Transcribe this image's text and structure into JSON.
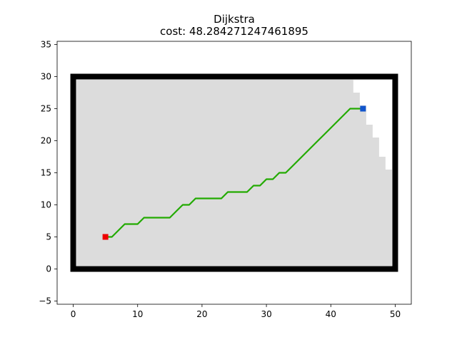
{
  "chart_data": {
    "type": "scatter",
    "title": "Dijkstra",
    "subtitle": "cost: 48.284271247461895",
    "xlabel": "",
    "ylabel": "",
    "xlim": [
      -2.5,
      52.5
    ],
    "ylim": [
      -5.5,
      35.5
    ],
    "xticks": [
      0,
      10,
      20,
      30,
      40,
      50
    ],
    "yticks": [
      -5,
      0,
      5,
      10,
      15,
      20,
      25,
      30,
      35
    ],
    "grid": false,
    "obstacle_boundary": {
      "color": "#000000",
      "x_range": [
        0,
        50
      ],
      "y_range": [
        0,
        30
      ]
    },
    "explored_region": {
      "color": "#dcdcdc",
      "outline": [
        [
          0.5,
          0.5
        ],
        [
          49.5,
          0.5
        ],
        [
          49.5,
          15.5
        ],
        [
          48.5,
          15.5
        ],
        [
          48.5,
          17.5
        ],
        [
          47.5,
          17.5
        ],
        [
          47.5,
          20.5
        ],
        [
          46.5,
          20.5
        ],
        [
          46.5,
          22.5
        ],
        [
          45.5,
          22.5
        ],
        [
          45.5,
          25.5
        ],
        [
          44.5,
          25.5
        ],
        [
          44.5,
          27.5
        ],
        [
          43.5,
          27.5
        ],
        [
          43.5,
          29.5
        ],
        [
          0.5,
          29.5
        ]
      ]
    },
    "path": {
      "color": "#22aa00",
      "points": [
        [
          5,
          5
        ],
        [
          6,
          5
        ],
        [
          7,
          6
        ],
        [
          8,
          7
        ],
        [
          9,
          7
        ],
        [
          10,
          7
        ],
        [
          11,
          8
        ],
        [
          12,
          8
        ],
        [
          13,
          8
        ],
        [
          14,
          8
        ],
        [
          15,
          8
        ],
        [
          16,
          9
        ],
        [
          17,
          10
        ],
        [
          18,
          10
        ],
        [
          19,
          11
        ],
        [
          20,
          11
        ],
        [
          21,
          11
        ],
        [
          22,
          11
        ],
        [
          23,
          11
        ],
        [
          24,
          12
        ],
        [
          25,
          12
        ],
        [
          26,
          12
        ],
        [
          27,
          12
        ],
        [
          28,
          13
        ],
        [
          29,
          13
        ],
        [
          30,
          14
        ],
        [
          31,
          14
        ],
        [
          32,
          15
        ],
        [
          33,
          15
        ],
        [
          34,
          16
        ],
        [
          35,
          17
        ],
        [
          36,
          18
        ],
        [
          37,
          19
        ],
        [
          38,
          20
        ],
        [
          39,
          21
        ],
        [
          40,
          22
        ],
        [
          41,
          23
        ],
        [
          42,
          24
        ],
        [
          43,
          25
        ],
        [
          44,
          25
        ],
        [
          45,
          25
        ]
      ]
    },
    "start": {
      "x": 5,
      "y": 5,
      "color": "#ee0000"
    },
    "goal": {
      "x": 45,
      "y": 25,
      "color": "#1155cc"
    }
  }
}
